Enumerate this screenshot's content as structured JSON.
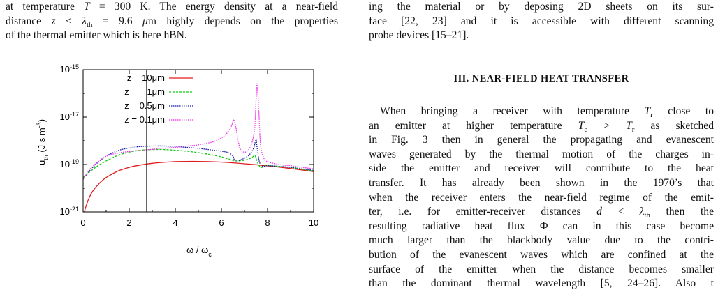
{
  "left_text": {
    "lines": [
      "at temperature T = 300 K. The energy density at a near-field",
      "distance z < λth = 9.6 μm highly depends on the properties",
      "of the thermal emitter which is here hBN."
    ]
  },
  "right_text": {
    "top_lines": [
      "ing the material or by deposing 2D sheets on its sur-",
      "face [22, 23] and it is accessible with different scanning",
      "probe devices [15–21]."
    ],
    "heading": "III.   NEAR-FIELD HEAT TRANSFER",
    "paragraph_lines": [
      "When bringing a receiver with temperature Tr close to",
      "an emitter at higher temperature Te > Tr as sketched",
      "in Fig. 3 then in general the propagating and evanescent",
      "waves generated by the thermal motion of the charges in-",
      "side the emitter and receiver will contribute to the heat",
      "transfer. It has already been shown in the 1970’s that",
      "when the receiver enters the near-field regime of the emit-",
      "ter, i.e. for emitter-receiver distances d < λth then the",
      "resulting radiative heat flux Φ can in this case become",
      "much larger than the blackbody value due to the contri-",
      "bution of the evanescent waves which are confined at the",
      "surface of the emitter when the distance becomes smaller",
      "than the dominant thermal wavelength [5, 24–26]. Also t"
    ]
  },
  "chart_data": {
    "type": "line",
    "xlabel": "ω / ωc",
    "ylabel": "uth (J s m-3)",
    "xlim": [
      0,
      10
    ],
    "ylim_log10": [
      -21,
      -15
    ],
    "x_ticks": [
      "0",
      "2",
      "4",
      "6",
      "8",
      "10"
    ],
    "y_ticks": [
      "10-21",
      "10-19",
      "10-17",
      "10-15"
    ],
    "y_tick_values": [
      -21,
      -19,
      -17,
      -15
    ],
    "vline_x": 2.75,
    "legend_position": "top-left",
    "grid": false,
    "series": [
      {
        "name": "z = 10μm",
        "color": "#e31a1c",
        "dash": "solid",
        "x": [
          0.05,
          0.2,
          0.4,
          0.7,
          1.0,
          1.5,
          2.0,
          2.5,
          3.0,
          3.5,
          4.0,
          4.5,
          5.0,
          5.5,
          6.0,
          6.5,
          7.0,
          7.5,
          8.0,
          8.5,
          9.0,
          9.5,
          10.0
        ],
        "y_log10": [
          -21.0,
          -20.55,
          -20.15,
          -19.8,
          -19.55,
          -19.28,
          -19.12,
          -19.02,
          -18.95,
          -18.91,
          -18.88,
          -18.87,
          -18.87,
          -18.88,
          -18.9,
          -18.93,
          -18.97,
          -19.01,
          -19.06,
          -19.11,
          -19.17,
          -19.23,
          -19.3
        ]
      },
      {
        "name": "z =    1μm",
        "color": "#11cc11",
        "dash": "dashed",
        "x": [
          0.0,
          0.3,
          0.6,
          1.0,
          1.5,
          2.0,
          2.5,
          3.0,
          3.5,
          4.0,
          4.5,
          5.0,
          5.5,
          6.0,
          6.4,
          6.6,
          7.0,
          7.3,
          7.45,
          7.55,
          7.7,
          7.9,
          8.0,
          8.5,
          9.0,
          9.5,
          10.0
        ],
        "y_log10": [
          -19.55,
          -19.3,
          -19.08,
          -18.85,
          -18.62,
          -18.48,
          -18.4,
          -18.37,
          -18.37,
          -18.4,
          -18.44,
          -18.5,
          -18.58,
          -18.68,
          -18.79,
          -18.85,
          -18.82,
          -18.72,
          -18.62,
          -18.88,
          -19.12,
          -19.05,
          -19.04,
          -19.08,
          -19.12,
          -19.2,
          -19.27
        ]
      },
      {
        "name": "z = 0.5μm",
        "color": "#1a1aa6",
        "dash": "dotted",
        "x": [
          0.0,
          0.3,
          0.6,
          1.0,
          1.5,
          2.0,
          2.5,
          3.0,
          3.5,
          4.0,
          4.5,
          5.0,
          5.5,
          6.0,
          6.3,
          6.5,
          6.6,
          6.9,
          7.2,
          7.4,
          7.5,
          7.55,
          7.65,
          7.8,
          8.0,
          8.5,
          9.0,
          9.5,
          10.0
        ],
        "y_log10": [
          -19.62,
          -19.25,
          -18.95,
          -18.65,
          -18.42,
          -18.3,
          -18.24,
          -18.22,
          -18.22,
          -18.24,
          -18.28,
          -18.32,
          -18.38,
          -18.44,
          -18.5,
          -18.65,
          -18.85,
          -18.78,
          -18.6,
          -18.3,
          -17.95,
          -18.3,
          -18.9,
          -19.08,
          -19.05,
          -19.08,
          -19.12,
          -19.18,
          -19.25
        ]
      },
      {
        "name": "z = 0.1μm",
        "color": "#ee33ee",
        "dash": "dotted",
        "x": [
          0.0,
          0.3,
          0.6,
          1.0,
          1.5,
          2.0,
          2.5,
          3.0,
          3.5,
          4.0,
          4.5,
          5.0,
          5.5,
          5.8,
          6.0,
          6.2,
          6.4,
          6.5,
          6.55,
          6.65,
          6.8,
          7.0,
          7.2,
          7.35,
          7.45,
          7.5,
          7.55,
          7.62,
          7.7,
          7.85,
          8.0,
          8.5,
          9.0,
          9.5,
          10.0
        ],
        "y_log10": [
          -19.62,
          -19.2,
          -18.92,
          -18.65,
          -18.52,
          -18.45,
          -18.4,
          -18.36,
          -18.32,
          -18.28,
          -18.23,
          -18.17,
          -18.08,
          -17.98,
          -17.88,
          -17.72,
          -17.45,
          -17.2,
          -17.12,
          -17.55,
          -18.3,
          -18.48,
          -18.35,
          -18.0,
          -17.4,
          -16.3,
          -15.6,
          -16.7,
          -18.2,
          -18.75,
          -18.88,
          -19.0,
          -19.05,
          -19.12,
          -19.18
        ]
      }
    ]
  }
}
